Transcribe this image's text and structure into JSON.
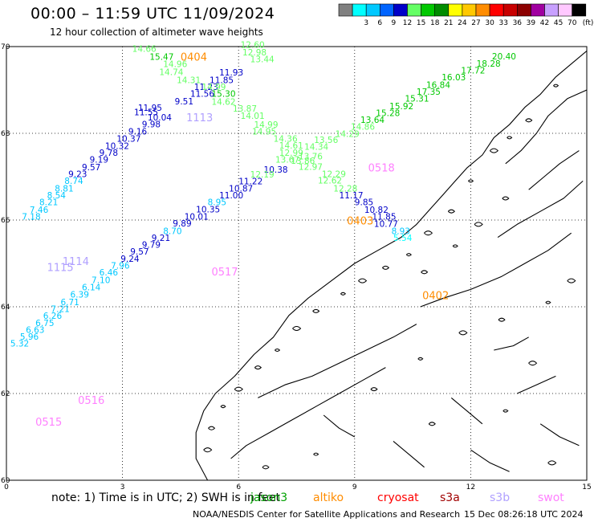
{
  "header": {
    "title": "00:00 – 11:59 UTC 11/09/2024",
    "subtitle": "12 hour collection of altimeter wave heights"
  },
  "legend": {
    "unit": "(ft)",
    "bins": [
      {
        "color": "#808080",
        "label": ""
      },
      {
        "color": "#00ffff",
        "label": "3"
      },
      {
        "color": "#00c8ff",
        "label": "6"
      },
      {
        "color": "#0064ff",
        "label": "9"
      },
      {
        "color": "#0000c8",
        "label": "12"
      },
      {
        "color": "#64ff64",
        "label": "15"
      },
      {
        "color": "#00c800",
        "label": "18"
      },
      {
        "color": "#008c00",
        "label": "21"
      },
      {
        "color": "#ffff00",
        "label": "24"
      },
      {
        "color": "#ffc800",
        "label": "27"
      },
      {
        "color": "#ff8c00",
        "label": "30"
      },
      {
        "color": "#ff0000",
        "label": "33"
      },
      {
        "color": "#c80000",
        "label": "36"
      },
      {
        "color": "#8c0000",
        "label": "39"
      },
      {
        "color": "#a000a0",
        "label": "42"
      },
      {
        "color": "#c8a0ff",
        "label": "45"
      },
      {
        "color": "#ffc8ff",
        "label": "70"
      },
      {
        "color": "#000000",
        "label": ""
      }
    ]
  },
  "axes": {
    "x_ticks": [
      "0",
      "3",
      "6",
      "9",
      "12",
      "15"
    ],
    "y_ticks": [
      "70",
      "68",
      "66",
      "64",
      "62",
      "60"
    ],
    "lon_range": [
      0,
      15
    ],
    "lat_range": [
      60,
      70
    ],
    "grid": "dotted"
  },
  "footer": {
    "note": "note: 1) Time is in UTC; 2) SWH is in feet",
    "credit": "NOAA/NESDIS Center for Satellite Applications and Research",
    "timestamp": "15 Dec 08:26:18 UTC 2024",
    "satellites": [
      {
        "name": "jason3",
        "color": "#00a000"
      },
      {
        "name": "altiko",
        "color": "#ff8c00"
      },
      {
        "name": "cryosat",
        "color": "#ff0000"
      },
      {
        "name": "s3a",
        "color": "#a00000"
      },
      {
        "name": "s3b",
        "color": "#b0a0ff"
      },
      {
        "name": "swot",
        "color": "#ff80ff"
      }
    ]
  },
  "chart_data": {
    "type": "scatter",
    "title": "00:00 – 11:59 UTC 11/09/2024",
    "subtitle": "12 hour collection of altimeter wave heights",
    "x_range": [
      0,
      15
    ],
    "y_range": [
      60,
      70
    ],
    "units": "ft",
    "tracks": [
      {
        "pass": "0404",
        "label_color": "#ff8c00",
        "label_at": [
          4.5,
          69.68
        ]
      },
      {
        "pass": "1113",
        "label_color": "#b0a0ff",
        "label_at": [
          4.65,
          68.28
        ]
      },
      {
        "pass": "0518",
        "label_color": "#ff80ff",
        "label_at": [
          9.35,
          67.12
        ]
      },
      {
        "pass": "0403",
        "label_color": "#ff8c00",
        "label_at": [
          8.8,
          65.9
        ]
      },
      {
        "pass": "1114",
        "label_color": "#b0a0ff",
        "label_at": [
          1.45,
          64.96
        ]
      },
      {
        "pass": "1115",
        "label_color": "#b0a0ff",
        "label_at": [
          1.05,
          64.82
        ]
      },
      {
        "pass": "0517",
        "label_color": "#ff80ff",
        "label_at": [
          5.3,
          64.72
        ]
      },
      {
        "pass": "0402",
        "label_color": "#ff8c00",
        "label_at": [
          10.75,
          64.18
        ]
      },
      {
        "pass": "0516",
        "label_color": "#ff80ff",
        "label_at": [
          1.85,
          61.76
        ]
      },
      {
        "pass": "0515",
        "label_color": "#ff80ff",
        "label_at": [
          0.75,
          61.26
        ]
      }
    ],
    "points": [
      {
        "x": 3.25,
        "y": 69.88,
        "v": "14.66",
        "c": "#64ff64"
      },
      {
        "x": 3.7,
        "y": 69.69,
        "v": "15.47",
        "c": "#00c800"
      },
      {
        "x": 4.05,
        "y": 69.53,
        "v": "14.96",
        "c": "#64ff64"
      },
      {
        "x": 3.95,
        "y": 69.34,
        "v": "14.74",
        "c": "#64ff64"
      },
      {
        "x": 5.5,
        "y": 69.33,
        "v": "11.93",
        "c": "#0000c8"
      },
      {
        "x": 4.4,
        "y": 69.16,
        "v": "14.31",
        "c": "#64ff64"
      },
      {
        "x": 5.25,
        "y": 69.16,
        "v": "11.85",
        "c": "#0000c8"
      },
      {
        "x": 4.85,
        "y": 69.0,
        "v": "11.23",
        "c": "#0000c8"
      },
      {
        "x": 5.05,
        "y": 69.0,
        "v": "14.99",
        "c": "#64ff64"
      },
      {
        "x": 4.75,
        "y": 68.84,
        "v": "11.56",
        "c": "#0000c8"
      },
      {
        "x": 5.3,
        "y": 68.84,
        "v": "15.30",
        "c": "#00c800"
      },
      {
        "x": 4.35,
        "y": 68.67,
        "v": "9.51",
        "c": "#0000c8"
      },
      {
        "x": 5.3,
        "y": 68.66,
        "v": "14.62",
        "c": "#64ff64"
      },
      {
        "x": 3.4,
        "y": 68.52,
        "v": "11.95",
        "c": "#0000c8"
      },
      {
        "x": 3.3,
        "y": 68.42,
        "v": "11.55",
        "c": "#0000c8"
      },
      {
        "x": 5.85,
        "y": 68.5,
        "v": "13.87",
        "c": "#64ff64"
      },
      {
        "x": 3.65,
        "y": 68.3,
        "v": "10.04",
        "c": "#0000c8"
      },
      {
        "x": 6.05,
        "y": 68.33,
        "v": "14.01",
        "c": "#64ff64"
      },
      {
        "x": 3.5,
        "y": 68.14,
        "v": "9.98",
        "c": "#0000c8"
      },
      {
        "x": 3.15,
        "y": 67.97,
        "v": "9.16",
        "c": "#0000c8"
      },
      {
        "x": 6.4,
        "y": 68.13,
        "v": "14.99",
        "c": "#64ff64"
      },
      {
        "x": 6.35,
        "y": 67.97,
        "v": "14.95",
        "c": "#64ff64"
      },
      {
        "x": 2.85,
        "y": 67.81,
        "v": "10.37",
        "c": "#0000c8"
      },
      {
        "x": 6.9,
        "y": 67.81,
        "v": "14.36",
        "c": "#64ff64"
      },
      {
        "x": 2.55,
        "y": 67.64,
        "v": "10.32",
        "c": "#0000c8"
      },
      {
        "x": 7.05,
        "y": 67.65,
        "v": "14.61",
        "c": "#64ff64"
      },
      {
        "x": 2.4,
        "y": 67.48,
        "v": "9.78",
        "c": "#0000c8"
      },
      {
        "x": 7.05,
        "y": 67.48,
        "v": "12.99",
        "c": "#64ff64"
      },
      {
        "x": 2.15,
        "y": 67.32,
        "v": "9.19",
        "c": "#0000c8"
      },
      {
        "x": 6.95,
        "y": 67.32,
        "v": "13.67",
        "c": "#64ff64"
      },
      {
        "x": 1.95,
        "y": 67.15,
        "v": "9.57",
        "c": "#0000c8"
      },
      {
        "x": 1.6,
        "y": 66.99,
        "v": "9.23",
        "c": "#0000c8"
      },
      {
        "x": 6.65,
        "y": 67.09,
        "v": "10.38",
        "c": "#0000c8"
      },
      {
        "x": 6.3,
        "y": 66.98,
        "v": "12.19",
        "c": "#64ff64"
      },
      {
        "x": 1.5,
        "y": 66.83,
        "v": "8.74",
        "c": "#00c8ff"
      },
      {
        "x": 6.0,
        "y": 66.82,
        "v": "11.22",
        "c": "#0000c8"
      },
      {
        "x": 1.25,
        "y": 66.66,
        "v": "8.81",
        "c": "#00c8ff"
      },
      {
        "x": 5.75,
        "y": 66.66,
        "v": "10.87",
        "c": "#0000c8"
      },
      {
        "x": 1.05,
        "y": 66.5,
        "v": "8.54",
        "c": "#00c8ff"
      },
      {
        "x": 5.5,
        "y": 66.5,
        "v": "11.00",
        "c": "#0000c8"
      },
      {
        "x": 0.85,
        "y": 66.34,
        "v": "8.21",
        "c": "#00c8ff"
      },
      {
        "x": 5.2,
        "y": 66.34,
        "v": "8.95",
        "c": "#00c8ff"
      },
      {
        "x": 0.6,
        "y": 66.17,
        "v": "7.46",
        "c": "#00c8ff"
      },
      {
        "x": 4.9,
        "y": 66.18,
        "v": "10.35",
        "c": "#0000c8"
      },
      {
        "x": 0.4,
        "y": 66.01,
        "v": "7.18",
        "c": "#00c8ff"
      },
      {
        "x": 4.6,
        "y": 66.01,
        "v": "10.01",
        "c": "#0000c8"
      },
      {
        "x": 4.3,
        "y": 65.85,
        "v": "9.89",
        "c": "#0000c8"
      },
      {
        "x": 4.05,
        "y": 65.68,
        "v": "8.70",
        "c": "#00c8ff"
      },
      {
        "x": 3.75,
        "y": 65.52,
        "v": "9.21",
        "c": "#0000c8"
      },
      {
        "x": 3.5,
        "y": 65.36,
        "v": "9.79",
        "c": "#0000c8"
      },
      {
        "x": 3.2,
        "y": 65.2,
        "v": "9.57",
        "c": "#0000c8"
      },
      {
        "x": 2.95,
        "y": 65.04,
        "v": "9.24",
        "c": "#0000c8"
      },
      {
        "x": 2.7,
        "y": 64.88,
        "v": "7.96",
        "c": "#00c8ff"
      },
      {
        "x": 2.4,
        "y": 64.72,
        "v": "6.46",
        "c": "#00c8ff"
      },
      {
        "x": 2.2,
        "y": 64.55,
        "v": "7.10",
        "c": "#00c8ff"
      },
      {
        "x": 1.95,
        "y": 64.38,
        "v": "6.14",
        "c": "#00c8ff"
      },
      {
        "x": 1.65,
        "y": 64.21,
        "v": "6.39",
        "c": "#00c8ff"
      },
      {
        "x": 1.4,
        "y": 64.04,
        "v": "6.71",
        "c": "#00c8ff"
      },
      {
        "x": 1.15,
        "y": 63.88,
        "v": "7.21",
        "c": "#00c8ff"
      },
      {
        "x": 0.95,
        "y": 63.72,
        "v": "6.26",
        "c": "#00c8ff"
      },
      {
        "x": 0.75,
        "y": 63.56,
        "v": "6.75",
        "c": "#00c8ff"
      },
      {
        "x": 0.5,
        "y": 63.4,
        "v": "6.63",
        "c": "#00c8ff"
      },
      {
        "x": 0.35,
        "y": 63.24,
        "v": "5.96",
        "c": "#00c8ff"
      },
      {
        "x": 0.1,
        "y": 63.08,
        "v": "5.32",
        "c": "#00c8ff"
      },
      {
        "x": 6.05,
        "y": 69.97,
        "v": "12.60",
        "c": "#64ff64"
      },
      {
        "x": 6.1,
        "y": 69.8,
        "v": "12.98",
        "c": "#64ff64"
      },
      {
        "x": 6.3,
        "y": 69.64,
        "v": "13.44",
        "c": "#64ff64"
      },
      {
        "x": 7.55,
        "y": 67.4,
        "v": "13.76",
        "c": "#64ff64"
      },
      {
        "x": 7.35,
        "y": 67.3,
        "v": "13.86",
        "c": "#64ff64"
      },
      {
        "x": 7.55,
        "y": 67.16,
        "v": "12.97",
        "c": "#64ff64"
      },
      {
        "x": 7.7,
        "y": 67.62,
        "v": "14.34",
        "c": "#64ff64"
      },
      {
        "x": 7.95,
        "y": 67.78,
        "v": "13.56",
        "c": "#64ff64"
      },
      {
        "x": 8.15,
        "y": 66.99,
        "v": "12.29",
        "c": "#64ff64"
      },
      {
        "x": 8.05,
        "y": 66.84,
        "v": "12.62",
        "c": "#64ff64"
      },
      {
        "x": 8.45,
        "y": 66.66,
        "v": "12.28",
        "c": "#64ff64"
      },
      {
        "x": 8.6,
        "y": 66.5,
        "v": "11.17",
        "c": "#0000c8"
      },
      {
        "x": 9.0,
        "y": 66.34,
        "v": "9.85",
        "c": "#0000c8"
      },
      {
        "x": 9.25,
        "y": 66.17,
        "v": "10.82",
        "c": "#0000c8"
      },
      {
        "x": 9.45,
        "y": 66.01,
        "v": "11.85",
        "c": "#0000c8"
      },
      {
        "x": 9.5,
        "y": 65.84,
        "v": "10.77",
        "c": "#0000c8"
      },
      {
        "x": 9.95,
        "y": 65.68,
        "v": "8.93",
        "c": "#00c8ff"
      },
      {
        "x": 10.0,
        "y": 65.52,
        "v": "5.54",
        "c": "#00ffff"
      },
      {
        "x": 8.5,
        "y": 67.92,
        "v": "14.29",
        "c": "#64ff64"
      },
      {
        "x": 8.9,
        "y": 68.08,
        "v": "14.86",
        "c": "#64ff64"
      },
      {
        "x": 9.15,
        "y": 68.24,
        "v": "13.64",
        "c": "#00c800"
      },
      {
        "x": 9.55,
        "y": 68.4,
        "v": "15.28",
        "c": "#00c800"
      },
      {
        "x": 9.9,
        "y": 68.56,
        "v": "15.92",
        "c": "#00c800"
      },
      {
        "x": 10.3,
        "y": 68.73,
        "v": "15.31",
        "c": "#00c800"
      },
      {
        "x": 10.6,
        "y": 68.89,
        "v": "17.35",
        "c": "#00c800"
      },
      {
        "x": 10.85,
        "y": 69.05,
        "v": "16.84",
        "c": "#00c800"
      },
      {
        "x": 11.25,
        "y": 69.22,
        "v": "16.03",
        "c": "#00c800"
      },
      {
        "x": 11.75,
        "y": 69.38,
        "v": "17.72",
        "c": "#00c800"
      },
      {
        "x": 12.15,
        "y": 69.54,
        "v": "18.28",
        "c": "#00c800"
      },
      {
        "x": 12.55,
        "y": 69.7,
        "v": "20.40",
        "c": "#00c800"
      }
    ]
  }
}
